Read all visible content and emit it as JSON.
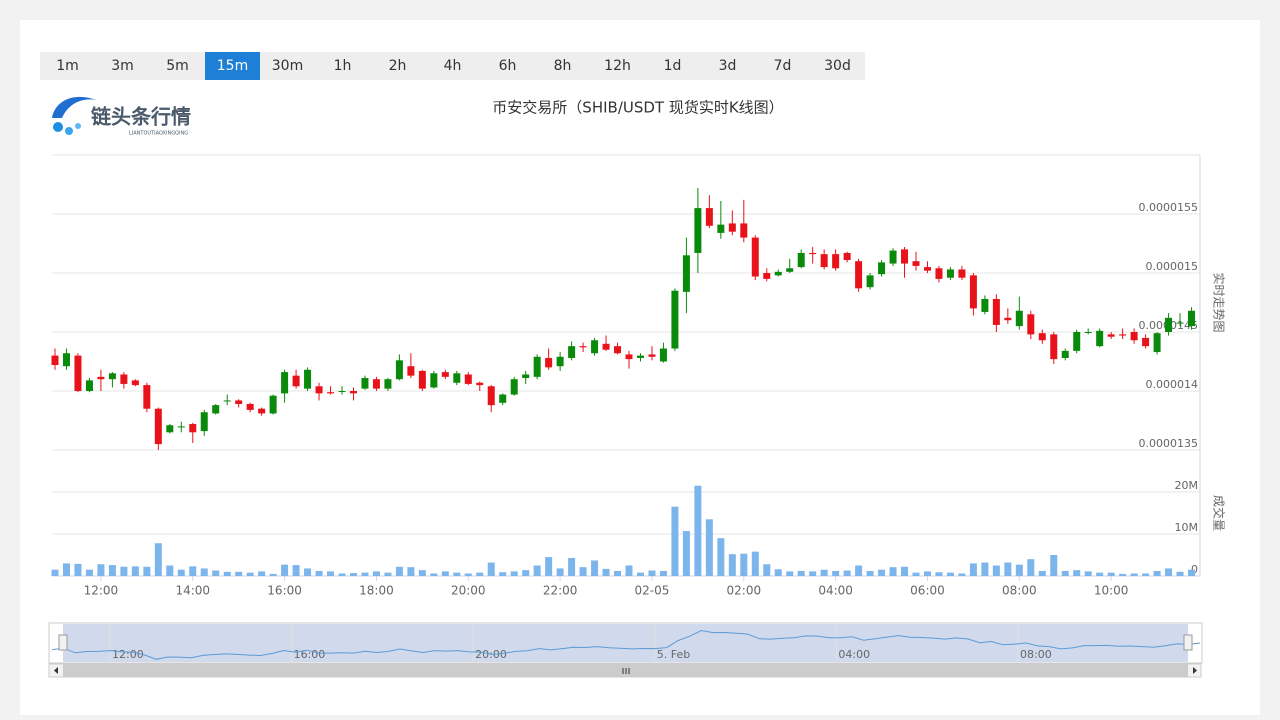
{
  "tabs": {
    "items": [
      "1m",
      "3m",
      "5m",
      "15m",
      "30m",
      "1h",
      "2h",
      "4h",
      "6h",
      "8h",
      "12h",
      "1d",
      "3d",
      "7d",
      "30d"
    ],
    "active": 3
  },
  "logo": {
    "text": "链头条行情",
    "subtext": "LIANTOUTIAOXINGQING"
  },
  "chart_data": {
    "type": "candlestick",
    "title": "币安交易所（SHIB/USDT 现货实时K线图）",
    "categories": [
      null,
      null,
      null,
      null,
      "12:00",
      null,
      null,
      null,
      null,
      null,
      null,
      null,
      "14:00",
      null,
      null,
      null,
      null,
      null,
      null,
      null,
      "16:00",
      null,
      null,
      null,
      null,
      null,
      null,
      null,
      "18:00",
      null,
      null,
      null,
      null,
      null,
      null,
      null,
      "20:00",
      null,
      null,
      null,
      null,
      null,
      null,
      null,
      "22:00",
      null,
      null,
      null,
      null,
      null,
      null,
      null,
      "02-05",
      null,
      null,
      null,
      null,
      null,
      null,
      null,
      "02:00",
      null,
      null,
      null,
      null,
      null,
      null,
      null,
      "04:00",
      null,
      null,
      null,
      null,
      null,
      null,
      null,
      "06:00",
      null,
      null,
      null,
      null,
      null,
      null,
      null,
      "08:00",
      null,
      null,
      null,
      null,
      null,
      null,
      null,
      "10:00",
      null,
      null,
      null,
      null,
      null,
      null,
      null
    ],
    "open": [
      1.43e-05,
      1.421e-05,
      1.43e-05,
      1.4e-05,
      1.412e-05,
      1.41e-05,
      1.414e-05,
      1.409e-05,
      1.405e-05,
      1.385e-05,
      1.365e-05,
      1.37e-05,
      1.372e-05,
      1.366e-05,
      1.381e-05,
      1.392e-05,
      1.392e-05,
      1.389e-05,
      1.385e-05,
      1.381e-05,
      1.398e-05,
      1.413e-05,
      1.402e-05,
      1.404e-05,
      1.399e-05,
      1.4e-05,
      1.4e-05,
      1.402e-05,
      1.41e-05,
      1.402e-05,
      1.41e-05,
      1.421e-05,
      1.417e-05,
      1.403e-05,
      1.416e-05,
      1.407e-05,
      1.414e-05,
      1.407e-05,
      1.404e-05,
      1.39e-05,
      1.397e-05,
      1.411e-05,
      1.412e-05,
      1.428e-05,
      1.421e-05,
      1.428e-05,
      1.438e-05,
      1.432e-05,
      1.44e-05,
      1.438e-05,
      1.431e-05,
      1.428e-05,
      1.431e-05,
      1.425e-05,
      1.436e-05,
      1.484e-05,
      1.517e-05,
      1.555e-05,
      1.534e-05,
      1.542e-05,
      1.542e-05,
      1.53e-05,
      1.5e-05,
      1.498e-05,
      1.501e-05,
      1.505e-05,
      1.517e-05,
      1.516e-05,
      1.516e-05,
      1.517e-05,
      1.51e-05,
      1.488e-05,
      1.499e-05,
      1.508e-05,
      1.52e-05,
      1.51e-05,
      1.505e-05,
      1.504e-05,
      1.496e-05,
      1.503e-05,
      1.498e-05,
      1.467e-05,
      1.478e-05,
      1.462e-05,
      1.455e-05,
      1.465e-05,
      1.449e-05,
      1.448e-05,
      1.428e-05,
      1.434e-05,
      1.45e-05,
      1.438e-05,
      1.448e-05,
      1.448e-05,
      1.45e-05,
      1.445e-05,
      1.433e-05,
      1.45e-05,
      1.458e-05,
      1.455e-05
    ],
    "high": [
      1.436e-05,
      1.436e-05,
      1.432e-05,
      1.411e-05,
      1.418e-05,
      1.416e-05,
      1.416e-05,
      1.41e-05,
      1.407e-05,
      1.386e-05,
      1.372e-05,
      1.374e-05,
      1.373e-05,
      1.384e-05,
      1.389e-05,
      1.397e-05,
      1.393e-05,
      1.39e-05,
      1.386e-05,
      1.397e-05,
      1.418e-05,
      1.418e-05,
      1.42e-05,
      1.407e-05,
      1.404e-05,
      1.404e-05,
      1.403e-05,
      1.413e-05,
      1.412e-05,
      1.411e-05,
      1.431e-05,
      1.432e-05,
      1.418e-05,
      1.417e-05,
      1.418e-05,
      1.417e-05,
      1.416e-05,
      1.408e-05,
      1.405e-05,
      1.398e-05,
      1.412e-05,
      1.417e-05,
      1.431e-05,
      1.436e-05,
      1.433e-05,
      1.442e-05,
      1.441e-05,
      1.445e-05,
      1.447e-05,
      1.441e-05,
      1.434e-05,
      1.432e-05,
      1.438e-05,
      1.441e-05,
      1.487e-05,
      1.53e-05,
      1.572e-05,
      1.566e-05,
      1.561e-05,
      1.553e-05,
      1.562e-05,
      1.532e-05,
      1.504e-05,
      1.503e-05,
      1.512e-05,
      1.52e-05,
      1.522e-05,
      1.52e-05,
      1.52e-05,
      1.518e-05,
      1.512e-05,
      1.5e-05,
      1.511e-05,
      1.521e-05,
      1.522e-05,
      1.518e-05,
      1.51e-05,
      1.506e-05,
      1.505e-05,
      1.506e-05,
      1.5e-05,
      1.481e-05,
      1.482e-05,
      1.47e-05,
      1.48e-05,
      1.468e-05,
      1.452e-05,
      1.45e-05,
      1.436e-05,
      1.452e-05,
      1.453e-05,
      1.453e-05,
      1.45e-05,
      1.453e-05,
      1.453e-05,
      1.448e-05,
      1.45e-05,
      1.466e-05,
      1.466e-05,
      1.471e-05
    ],
    "low": [
      1.418e-05,
      1.418e-05,
      1.399e-05,
      1.399e-05,
      1.4e-05,
      1.403e-05,
      1.402e-05,
      1.404e-05,
      1.382e-05,
      1.35e-05,
      1.364e-05,
      1.365e-05,
      1.356e-05,
      1.362e-05,
      1.38e-05,
      1.388e-05,
      1.386e-05,
      1.382e-05,
      1.379e-05,
      1.38e-05,
      1.39e-05,
      1.402e-05,
      1.4e-05,
      1.392e-05,
      1.397e-05,
      1.397e-05,
      1.392e-05,
      1.401e-05,
      1.4e-05,
      1.4e-05,
      1.409e-05,
      1.411e-05,
      1.4e-05,
      1.402e-05,
      1.41e-05,
      1.405e-05,
      1.405e-05,
      1.4e-05,
      1.382e-05,
      1.388e-05,
      1.396e-05,
      1.406e-05,
      1.41e-05,
      1.418e-05,
      1.417e-05,
      1.426e-05,
      1.433e-05,
      1.43e-05,
      1.434e-05,
      1.431e-05,
      1.419e-05,
      1.425e-05,
      1.426e-05,
      1.424e-05,
      1.434e-05,
      1.466e-05,
      1.5e-05,
      1.538e-05,
      1.529e-05,
      1.532e-05,
      1.526e-05,
      1.494e-05,
      1.493e-05,
      1.497e-05,
      1.5e-05,
      1.504e-05,
      1.508e-05,
      1.503e-05,
      1.502e-05,
      1.509e-05,
      1.484e-05,
      1.486e-05,
      1.497e-05,
      1.506e-05,
      1.496e-05,
      1.502e-05,
      1.5e-05,
      1.492e-05,
      1.494e-05,
      1.494e-05,
      1.464e-05,
      1.465e-05,
      1.45e-05,
      1.457e-05,
      1.452e-05,
      1.444e-05,
      1.44e-05,
      1.423e-05,
      1.426e-05,
      1.432e-05,
      1.448e-05,
      1.437e-05,
      1.444e-05,
      1.444e-05,
      1.44e-05,
      1.436e-05,
      1.431e-05,
      1.447e-05,
      1.455e-05,
      1.452e-05
    ],
    "close": [
      1.422e-05,
      1.432e-05,
      1.4e-05,
      1.409e-05,
      1.41e-05,
      1.415e-05,
      1.406e-05,
      1.405e-05,
      1.385e-05,
      1.355e-05,
      1.371e-05,
      1.37e-05,
      1.365e-05,
      1.382e-05,
      1.388e-05,
      1.392e-05,
      1.389e-05,
      1.384e-05,
      1.381e-05,
      1.396e-05,
      1.416e-05,
      1.404e-05,
      1.418e-05,
      1.398e-05,
      1.398e-05,
      1.4e-05,
      1.398e-05,
      1.411e-05,
      1.402e-05,
      1.41e-05,
      1.426e-05,
      1.413e-05,
      1.402e-05,
      1.415e-05,
      1.412e-05,
      1.415e-05,
      1.406e-05,
      1.405e-05,
      1.388e-05,
      1.397e-05,
      1.41e-05,
      1.414e-05,
      1.429e-05,
      1.42e-05,
      1.429e-05,
      1.438e-05,
      1.437e-05,
      1.443e-05,
      1.435e-05,
      1.432e-05,
      1.427e-05,
      1.43e-05,
      1.429e-05,
      1.436e-05,
      1.485e-05,
      1.515e-05,
      1.555e-05,
      1.54e-05,
      1.541e-05,
      1.535e-05,
      1.53e-05,
      1.497e-05,
      1.495e-05,
      1.501e-05,
      1.504e-05,
      1.517e-05,
      1.516e-05,
      1.505e-05,
      1.504e-05,
      1.511e-05,
      1.487e-05,
      1.498e-05,
      1.509e-05,
      1.519e-05,
      1.508e-05,
      1.506e-05,
      1.502e-05,
      1.495e-05,
      1.503e-05,
      1.496e-05,
      1.47e-05,
      1.478e-05,
      1.456e-05,
      1.46e-05,
      1.468e-05,
      1.448e-05,
      1.443e-05,
      1.427e-05,
      1.434e-05,
      1.45e-05,
      1.45e-05,
      1.451e-05,
      1.446e-05,
      1.447e-05,
      1.443e-05,
      1.438e-05,
      1.449e-05,
      1.462e-05,
      1.458e-05,
      1.468e-05
    ],
    "up_color": "#0a8a0a",
    "down_color": "#e8121a",
    "ylim": [
      1.35e-05,
      1.6e-05
    ],
    "yticks": [
      {
        "value": 1.35e-05,
        "label": "0.0000135"
      },
      {
        "value": 1.4e-05,
        "label": "0.000014"
      },
      {
        "value": 1.45e-05,
        "label": "0.0000145"
      },
      {
        "value": 1.5e-05,
        "label": "0.000015"
      },
      {
        "value": 1.55e-05,
        "label": "0.0000155"
      }
    ],
    "grid": true,
    "y_title": "实时走势图",
    "volume": {
      "title": "成交量",
      "color": "#7cb5ec",
      "ylim": [
        0,
        30000000
      ],
      "yticks": [
        0,
        {
          "value": 10000000,
          "label": "10M"
        },
        {
          "value": 20000000,
          "label": "20M"
        }
      ],
      "values": [
        1500000,
        3000000,
        2900000,
        1500000,
        2800000,
        2600000,
        2200000,
        2300000,
        2200000,
        7800000,
        2500000,
        1500000,
        2300000,
        1800000,
        1300000,
        1000000,
        1000000,
        800000,
        1100000,
        500000,
        2700000,
        2600000,
        1800000,
        1200000,
        1100000,
        600000,
        700000,
        800000,
        1100000,
        800000,
        2200000,
        2100000,
        1400000,
        600000,
        1100000,
        800000,
        600000,
        800000,
        3200000,
        900000,
        1100000,
        1400000,
        2500000,
        4500000,
        1800000,
        4300000,
        2100000,
        3700000,
        1700000,
        1200000,
        2500000,
        800000,
        1300000,
        1200000,
        16500000,
        10700000,
        21500000,
        13500000,
        9000000,
        5200000,
        5300000,
        5800000,
        2800000,
        1600000,
        1100000,
        1200000,
        1100000,
        1500000,
        1200000,
        1300000,
        2500000,
        1200000,
        1500000,
        2100000,
        2200000,
        800000,
        1100000,
        900000,
        800000,
        600000,
        3000000,
        3200000,
        2500000,
        3200000,
        2700000,
        4000000,
        1200000,
        5000000,
        1200000,
        1400000,
        1100000,
        800000,
        800000,
        500000,
        600000,
        600000,
        1200000,
        1800000,
        1000000,
        1500000
      ]
    }
  },
  "navigator": {
    "labels": [
      "12:00",
      "16:00",
      "20:00",
      "5. Feb",
      "04:00",
      "08:00"
    ]
  }
}
